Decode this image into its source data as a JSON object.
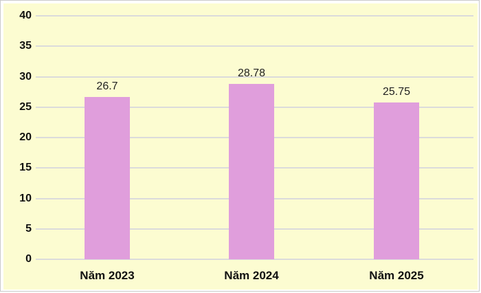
{
  "chart_data": {
    "type": "bar",
    "title": "",
    "xlabel": "",
    "ylabel": "",
    "categories": [
      "Năm 2023",
      "Năm 2024",
      "Năm 2025"
    ],
    "values": [
      26.7,
      28.78,
      25.75
    ],
    "value_labels": [
      "26.7",
      "28.78",
      "25.75"
    ],
    "ylim": [
      0,
      40
    ],
    "yticks": [
      0,
      5,
      10,
      15,
      20,
      25,
      30,
      35,
      40
    ],
    "grid": true,
    "legend_position": "none",
    "colors": {
      "bar_fill": "#E09EDC",
      "plot_background": "#FCFCD1",
      "gridline": "#DBDBDB",
      "axis_tick_text": "#111111",
      "value_label_text": "#1F1F1F",
      "category_label_text": "#111111",
      "frame_border": "#C9C9C9",
      "frame_background": "#FFFFFF"
    }
  }
}
